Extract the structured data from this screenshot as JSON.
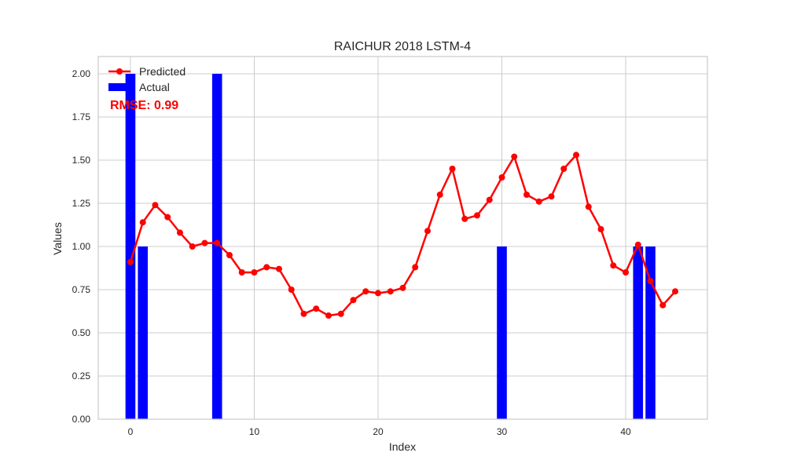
{
  "chart_data": {
    "type": "bar+line",
    "title": "RAICHUR 2018 LSTM-4",
    "xlabel": "Index",
    "ylabel": "Values",
    "xlim": [
      -2.6,
      46.6
    ],
    "ylim": [
      0,
      2.1
    ],
    "xticks": [
      0,
      10,
      20,
      30,
      40
    ],
    "yticks": [
      0.0,
      0.25,
      0.5,
      0.75,
      1.0,
      1.25,
      1.5,
      1.75,
      2.0
    ],
    "grid": true,
    "legend": {
      "placement": "top-left",
      "entries": [
        "Predicted",
        "Actual"
      ]
    },
    "annotation": {
      "text": "RMSE: 0.99",
      "color": "#ff0000"
    },
    "actual": {
      "name": "Actual",
      "color": "#0000ff",
      "x": [
        0,
        1,
        7,
        30,
        41,
        42
      ],
      "values": [
        2,
        1,
        2,
        1,
        1,
        1
      ]
    },
    "predicted": {
      "name": "Predicted",
      "color": "#ff0000",
      "x": [
        0,
        1,
        2,
        3,
        4,
        5,
        6,
        7,
        8,
        9,
        10,
        11,
        12,
        13,
        14,
        15,
        16,
        17,
        18,
        19,
        20,
        21,
        22,
        23,
        24,
        25,
        26,
        27,
        28,
        29,
        30,
        31,
        32,
        33,
        34,
        35,
        36,
        37,
        38,
        39,
        40,
        41,
        42,
        43,
        44
      ],
      "values": [
        0.91,
        1.14,
        1.24,
        1.17,
        1.08,
        1.0,
        1.02,
        1.02,
        0.95,
        0.85,
        0.85,
        0.88,
        0.87,
        0.75,
        0.61,
        0.64,
        0.6,
        0.61,
        0.69,
        0.74,
        0.73,
        0.74,
        0.76,
        0.88,
        1.09,
        1.3,
        1.45,
        1.16,
        1.18,
        1.27,
        1.4,
        1.52,
        1.3,
        1.26,
        1.29,
        1.45,
        1.53,
        1.23,
        1.1,
        0.89,
        0.85,
        1.01,
        0.8,
        0.66,
        0.74
      ]
    }
  }
}
